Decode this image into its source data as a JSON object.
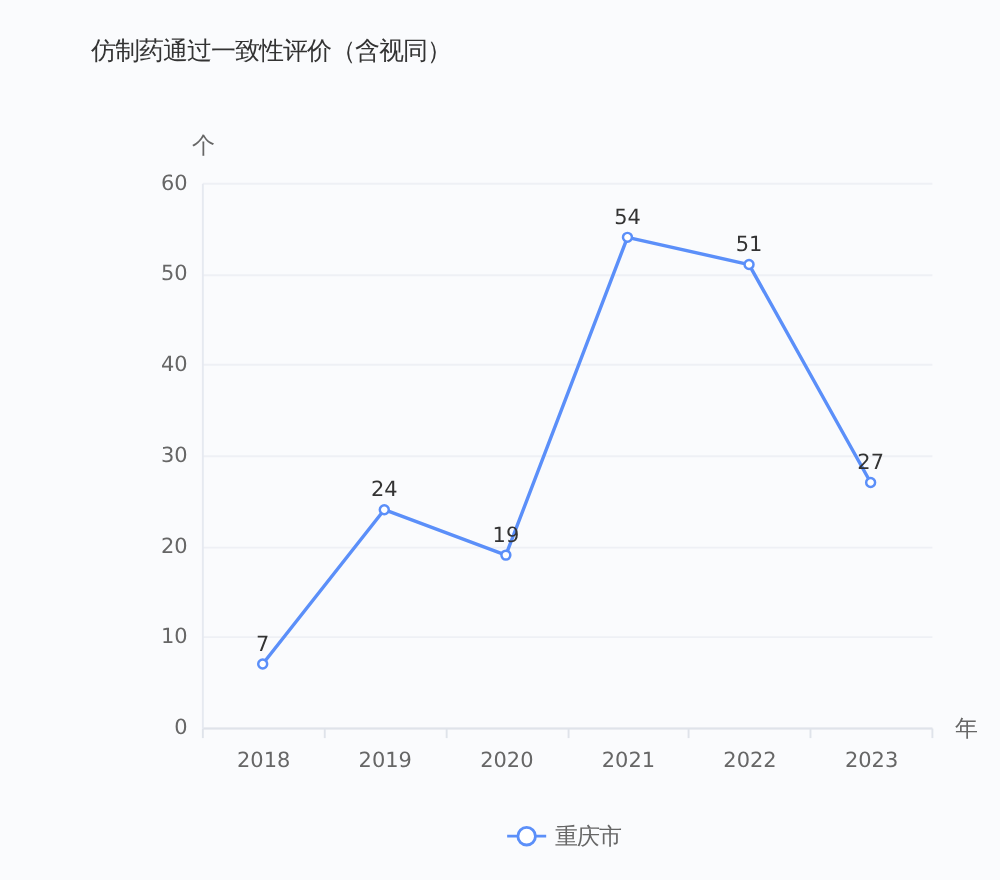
{
  "chart_data": {
    "type": "line",
    "title": "仿制药通过一致性评价（含视同）",
    "xlabel": "年",
    "ylabel": "个",
    "categories": [
      "2018",
      "2019",
      "2020",
      "2021",
      "2022",
      "2023"
    ],
    "series": [
      {
        "name": "重庆市",
        "color": "#5b8ff9",
        "values": [
          7,
          24,
          19,
          54,
          51,
          27
        ]
      }
    ],
    "ylim": [
      0,
      60
    ],
    "yticks": [
      0,
      10,
      20,
      30,
      40,
      50,
      60
    ],
    "grid": "y",
    "legend": "bottom",
    "marker": "circle",
    "line_style": "solid",
    "data_labels": true
  }
}
